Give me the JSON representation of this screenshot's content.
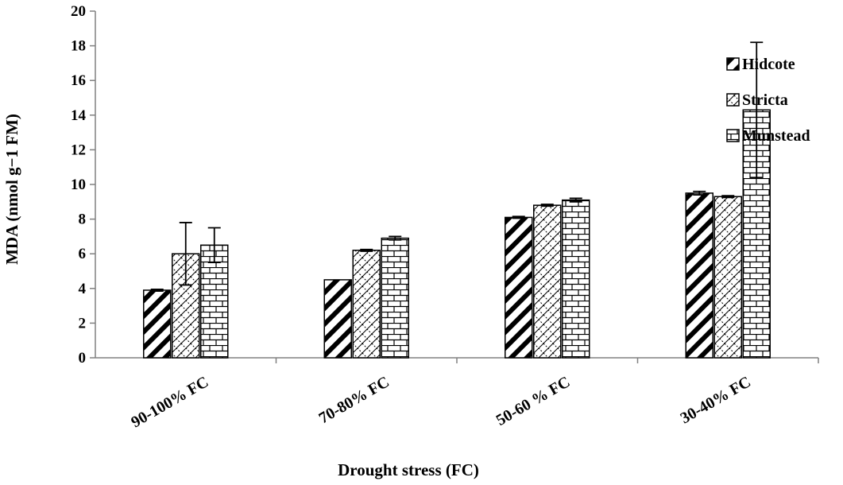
{
  "chart_data": {
    "type": "bar",
    "title": "",
    "xlabel": "Drought stress (FC)",
    "ylabel": "MDA (nmol g−1 FM)",
    "ylim": [
      0,
      20
    ],
    "yticks": [
      0,
      2,
      4,
      6,
      8,
      10,
      12,
      14,
      16,
      18,
      20
    ],
    "categories": [
      "90-100% FC",
      "70-80% FC",
      "50-60 % FC",
      "30-40% FC"
    ],
    "series": [
      {
        "name": "Hidcote",
        "pattern": "diagonal-thick",
        "values": [
          3.9,
          4.5,
          8.1,
          9.5
        ],
        "errors": [
          0.05,
          0.0,
          0.05,
          0.1
        ]
      },
      {
        "name": "Stricta",
        "pattern": "diamond-hatch",
        "values": [
          6.0,
          6.2,
          8.8,
          9.3
        ],
        "errors": [
          1.8,
          0.05,
          0.05,
          0.05
        ]
      },
      {
        "name": "Munstead",
        "pattern": "brick",
        "values": [
          6.5,
          6.9,
          9.1,
          14.3
        ],
        "errors": [
          1.0,
          0.1,
          0.1,
          3.9
        ]
      }
    ],
    "legend_position": "right",
    "grid": false,
    "colors": {
      "bar_fill": "#ffffff",
      "bar_stroke": "#000000",
      "axis": "#808080"
    }
  }
}
